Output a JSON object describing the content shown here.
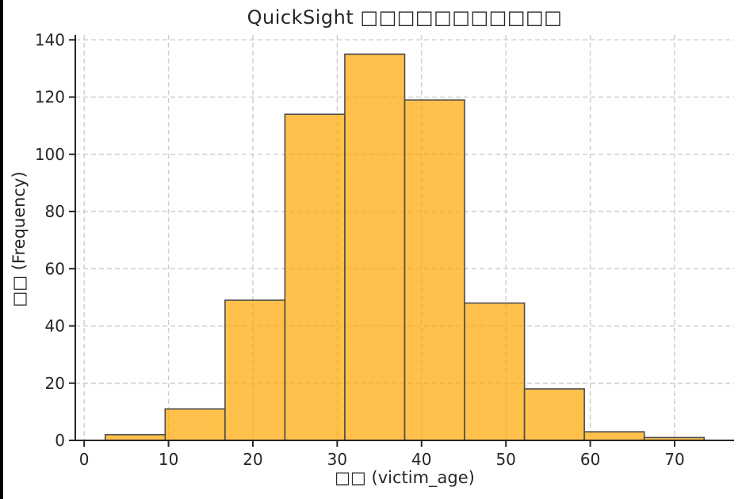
{
  "window": {
    "left_border_color": "#000000",
    "background": "#ffffff"
  },
  "chart_data": {
    "type": "bar",
    "subtype": "histogram",
    "title": "QuickSight □□□□□□□□□□□",
    "xlabel": "□□ (victim_age)",
    "ylabel": "□□ (Frequency)",
    "bin_edges": [
      2.5,
      9.6,
      16.7,
      23.8,
      30.9,
      38.0,
      45.1,
      52.2,
      59.3,
      66.4,
      73.5
    ],
    "counts": [
      2,
      11,
      49,
      114,
      135,
      119,
      48,
      18,
      3,
      1
    ],
    "x_ticks": [
      0,
      10,
      20,
      30,
      40,
      50,
      60,
      70
    ],
    "y_ticks": [
      0,
      20,
      40,
      60,
      80,
      100,
      120,
      140
    ],
    "xlim": [
      -1.05,
      77.05
    ],
    "ylim": [
      0,
      141.75
    ],
    "grid": true,
    "grid_style": "dashed",
    "legend": "none",
    "colors": {
      "bar_fill": "rgba(255,165,0,0.7)",
      "bar_edge": "#4d4d4d",
      "grid": "#cccccc",
      "axis": "#262626",
      "text": "#262626"
    }
  }
}
